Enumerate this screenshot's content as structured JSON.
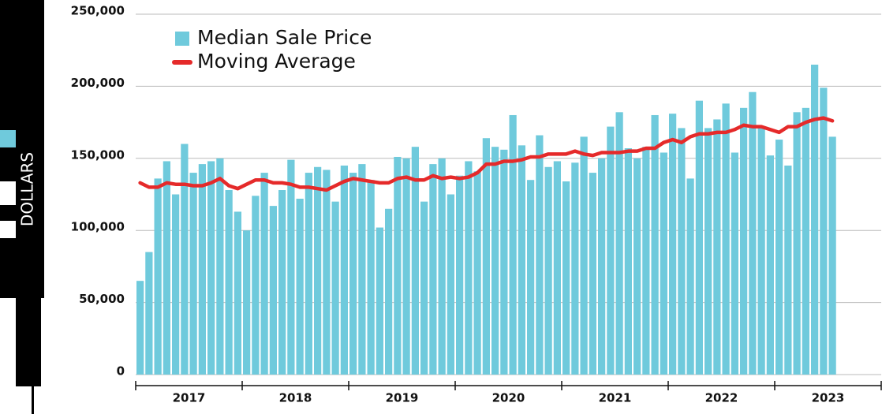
{
  "chart_data": {
    "type": "bar_line",
    "y_label": "DOLLARS",
    "x_labels": [
      "2017",
      "2018",
      "2019",
      "2020",
      "2021",
      "2022",
      "2023"
    ],
    "series": [
      {
        "name": "Median Sale Price",
        "type": "bar",
        "color": "#6fcadc",
        "values": [
          65000,
          85000,
          136000,
          148000,
          125000,
          160000,
          140000,
          146000,
          148000,
          150000,
          128000,
          113000,
          100000,
          124000,
          140000,
          117000,
          128000,
          149000,
          122000,
          140000,
          144000,
          142000,
          120000,
          145000,
          140000,
          146000,
          135000,
          102000,
          115000,
          151000,
          150000,
          158000,
          120000,
          146000,
          150000,
          125000,
          138000,
          148000,
          141000,
          164000,
          158000,
          156000,
          180000,
          159000,
          135000,
          166000,
          144000,
          148000,
          134000,
          147000,
          165000,
          140000,
          150000,
          172000,
          182000,
          157000,
          150000,
          158000,
          180000,
          154000,
          181000,
          171000,
          136000,
          190000,
          171000,
          177000,
          188000,
          154000,
          185000,
          196000,
          172000,
          152000,
          163000,
          145000,
          182000,
          185000,
          215000,
          199000,
          165000
        ]
      },
      {
        "name": "Moving Average",
        "type": "line",
        "color": "#e52a2a",
        "values": [
          133000,
          130000,
          130000,
          133000,
          132000,
          132000,
          131000,
          131000,
          133000,
          136000,
          131000,
          129000,
          132000,
          135000,
          135000,
          133000,
          133000,
          132000,
          130000,
          130000,
          129000,
          128000,
          131000,
          134000,
          136000,
          135000,
          134000,
          133000,
          133000,
          136000,
          137000,
          135000,
          135000,
          138000,
          136000,
          137000,
          136000,
          137000,
          140000,
          146000,
          146000,
          148000,
          148000,
          149000,
          151000,
          151000,
          153000,
          153000,
          153000,
          155000,
          153000,
          152000,
          154000,
          154000,
          154000,
          155000,
          155000,
          157000,
          157000,
          161000,
          163000,
          161000,
          165000,
          167000,
          167000,
          168000,
          168000,
          170000,
          173000,
          172000,
          172000,
          170000,
          168000,
          172000,
          172000,
          175000,
          177000,
          178000,
          176000
        ]
      }
    ],
    "ylim": [
      0,
      250000
    ],
    "yticks": [
      {
        "value": 0,
        "label": "0"
      },
      {
        "value": 50000,
        "label": "50,000"
      },
      {
        "value": 100000,
        "label": "100,000"
      },
      {
        "value": 150000,
        "label": "150,000"
      },
      {
        "value": 200000,
        "label": "200,000"
      },
      {
        "value": 250000,
        "label": "250,000"
      }
    ],
    "grid": true,
    "legend": "upper left"
  }
}
